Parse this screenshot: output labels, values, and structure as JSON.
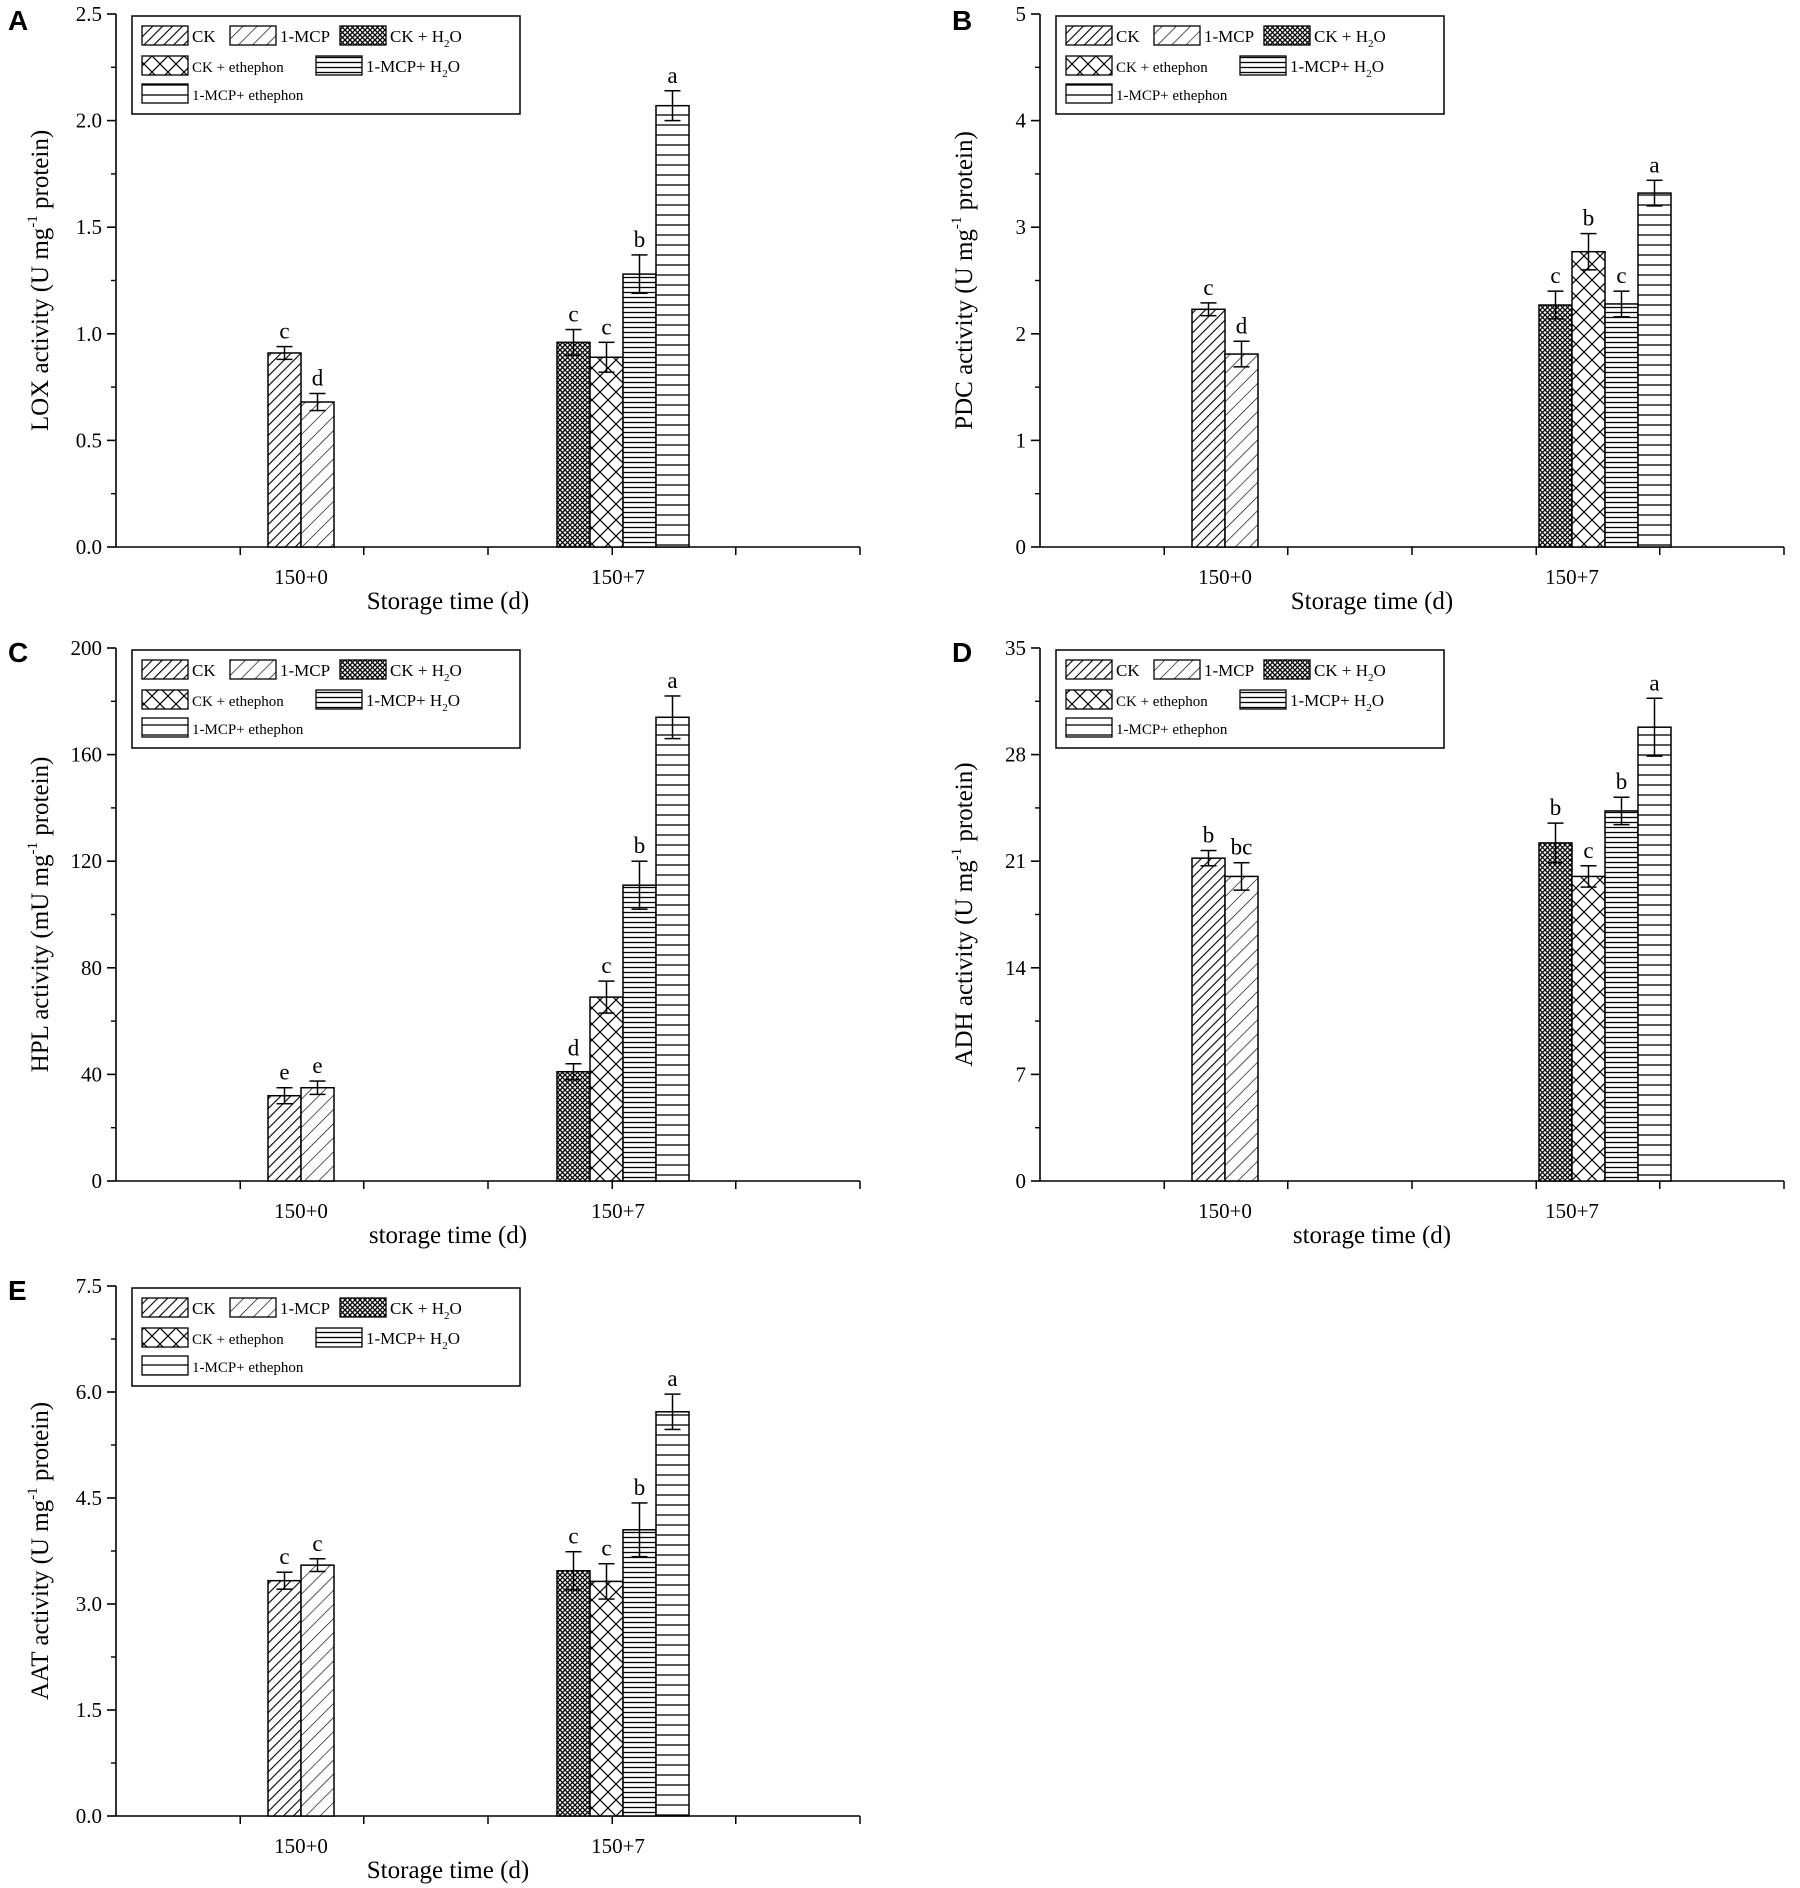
{
  "figure": {
    "legend": {
      "ck": "CK",
      "mcp": "1-MCP",
      "ck_h2o": "CK + H",
      "ck_eth": "CK + ethephon",
      "mcp_h2o": "1-MCP+ H",
      "mcp_eth": "1-MCP+ ethephon",
      "o_suffix": "O",
      "sub_2": "2"
    },
    "superscript": "-1"
  },
  "chart_data": [
    {
      "panel": "A",
      "type": "bar",
      "ylabel": "LOX activity (U mg",
      "ylabel_tail": " protein)",
      "xlabel": "Storage time (d)",
      "categories": [
        "150+0",
        "150+7"
      ],
      "ylim": [
        0,
        2.5
      ],
      "yticks": [
        "0.0",
        "0.5",
        "1.0",
        "1.5",
        "2.0",
        "2.5"
      ],
      "series": [
        {
          "name": "CK",
          "values": [
            0.91,
            null
          ],
          "errors": [
            0.03,
            null
          ],
          "labels": [
            "c",
            null
          ]
        },
        {
          "name": "1-MCP",
          "values": [
            0.68,
            null
          ],
          "errors": [
            0.04,
            null
          ],
          "labels": [
            "d",
            null
          ]
        },
        {
          "name": "CK + H2O",
          "values": [
            null,
            0.96
          ],
          "errors": [
            null,
            0.06
          ],
          "labels": [
            null,
            "c"
          ]
        },
        {
          "name": "CK + ethephon",
          "values": [
            null,
            0.89
          ],
          "errors": [
            null,
            0.07
          ],
          "labels": [
            null,
            "c"
          ]
        },
        {
          "name": "1-MCP+ H2O",
          "values": [
            null,
            1.28
          ],
          "errors": [
            null,
            0.09
          ],
          "labels": [
            null,
            "b"
          ]
        },
        {
          "name": "1-MCP+ ethephon",
          "values": [
            null,
            2.07
          ],
          "errors": [
            null,
            0.07
          ],
          "labels": [
            null,
            "a"
          ]
        }
      ]
    },
    {
      "panel": "B",
      "type": "bar",
      "ylabel": "PDC activity (U mg",
      "ylabel_tail": " protein)",
      "xlabel": "Storage time (d)",
      "categories": [
        "150+0",
        "150+7"
      ],
      "ylim": [
        0,
        5
      ],
      "yticks": [
        "0",
        "1",
        "2",
        "3",
        "4",
        "5"
      ],
      "series": [
        {
          "name": "CK",
          "values": [
            2.23,
            null
          ],
          "errors": [
            0.06,
            null
          ],
          "labels": [
            "c",
            null
          ]
        },
        {
          "name": "1-MCP",
          "values": [
            1.81,
            null
          ],
          "errors": [
            0.12,
            null
          ],
          "labels": [
            "d",
            null
          ]
        },
        {
          "name": "CK + H2O",
          "values": [
            null,
            2.27
          ],
          "errors": [
            null,
            0.13
          ],
          "labels": [
            null,
            "c"
          ]
        },
        {
          "name": "CK + ethephon",
          "values": [
            null,
            2.77
          ],
          "errors": [
            null,
            0.17
          ],
          "labels": [
            null,
            "b"
          ]
        },
        {
          "name": "1-MCP+ H2O",
          "values": [
            null,
            2.28
          ],
          "errors": [
            null,
            0.12
          ],
          "labels": [
            null,
            "c"
          ]
        },
        {
          "name": "1-MCP+ ethephon",
          "values": [
            null,
            3.32
          ],
          "errors": [
            null,
            0.12
          ],
          "labels": [
            null,
            "a"
          ]
        }
      ]
    },
    {
      "panel": "C",
      "type": "bar",
      "ylabel": "HPL activity (mU mg",
      "ylabel_tail": " protein)",
      "xlabel": "storage time (d)",
      "categories": [
        "150+0",
        "150+7"
      ],
      "ylim": [
        0,
        200
      ],
      "yticks": [
        "0",
        "40",
        "80",
        "120",
        "160",
        "200"
      ],
      "series": [
        {
          "name": "CK",
          "values": [
            32,
            null
          ],
          "errors": [
            3,
            null
          ],
          "labels": [
            "e",
            null
          ]
        },
        {
          "name": "1-MCP",
          "values": [
            35,
            null
          ],
          "errors": [
            2.5,
            null
          ],
          "labels": [
            "e",
            null
          ]
        },
        {
          "name": "CK + H2O",
          "values": [
            null,
            41
          ],
          "errors": [
            null,
            3
          ],
          "labels": [
            null,
            "d"
          ]
        },
        {
          "name": "CK + ethephon",
          "values": [
            null,
            69
          ],
          "errors": [
            null,
            6
          ],
          "labels": [
            null,
            "c"
          ]
        },
        {
          "name": "1-MCP+ H2O",
          "values": [
            null,
            111
          ],
          "errors": [
            null,
            9
          ],
          "labels": [
            null,
            "b"
          ]
        },
        {
          "name": "1-MCP+ ethephon",
          "values": [
            null,
            174
          ],
          "errors": [
            null,
            8
          ],
          "labels": [
            null,
            "a"
          ]
        }
      ]
    },
    {
      "panel": "D",
      "type": "bar",
      "ylabel": "ADH activity (U mg",
      "ylabel_tail": " protein)",
      "xlabel": "storage time (d)",
      "categories": [
        "150+0",
        "150+7"
      ],
      "ylim": [
        0,
        35
      ],
      "yticks": [
        "0",
        "7",
        "14",
        "21",
        "28",
        "35"
      ],
      "series": [
        {
          "name": "CK",
          "values": [
            21.2,
            null
          ],
          "errors": [
            0.5,
            null
          ],
          "labels": [
            "b",
            null
          ]
        },
        {
          "name": "1-MCP",
          "values": [
            20.0,
            null
          ],
          "errors": [
            0.9,
            null
          ],
          "labels": [
            "bc",
            null
          ]
        },
        {
          "name": "CK + H2O",
          "values": [
            null,
            22.2
          ],
          "errors": [
            null,
            1.3
          ],
          "labels": [
            null,
            "b"
          ]
        },
        {
          "name": "CK + ethephon",
          "values": [
            null,
            20.0
          ],
          "errors": [
            null,
            0.7
          ],
          "labels": [
            null,
            "c"
          ]
        },
        {
          "name": "1-MCP+ H2O",
          "values": [
            null,
            24.3
          ],
          "errors": [
            null,
            0.9
          ],
          "labels": [
            null,
            "b"
          ]
        },
        {
          "name": "1-MCP+ ethephon",
          "values": [
            null,
            29.8
          ],
          "errors": [
            null,
            1.9
          ],
          "labels": [
            null,
            "a"
          ]
        }
      ]
    },
    {
      "panel": "E",
      "type": "bar",
      "ylabel": "AAT activity (U mg",
      "ylabel_tail": " protein)",
      "xlabel": "Storage time (d)",
      "categories": [
        "150+0",
        "150+7"
      ],
      "ylim": [
        0,
        7.5
      ],
      "yticks": [
        "0.0",
        "1.5",
        "3.0",
        "4.5",
        "6.0",
        "7.5"
      ],
      "series": [
        {
          "name": "CK",
          "values": [
            3.33,
            null
          ],
          "errors": [
            0.12,
            null
          ],
          "labels": [
            "c",
            null
          ]
        },
        {
          "name": "1-MCP",
          "values": [
            3.55,
            null
          ],
          "errors": [
            0.09,
            null
          ],
          "labels": [
            "c",
            null
          ]
        },
        {
          "name": "CK + H2O",
          "values": [
            null,
            3.47
          ],
          "errors": [
            null,
            0.27
          ],
          "labels": [
            null,
            "c"
          ]
        },
        {
          "name": "CK + ethephon",
          "values": [
            null,
            3.32
          ],
          "errors": [
            null,
            0.25
          ],
          "labels": [
            null,
            "c"
          ]
        },
        {
          "name": "1-MCP+ H2O",
          "values": [
            null,
            4.05
          ],
          "errors": [
            null,
            0.38
          ],
          "labels": [
            null,
            "b"
          ]
        },
        {
          "name": "1-MCP+ ethephon",
          "values": [
            null,
            5.72
          ],
          "errors": [
            null,
            0.25
          ],
          "labels": [
            null,
            "a"
          ]
        }
      ]
    }
  ]
}
